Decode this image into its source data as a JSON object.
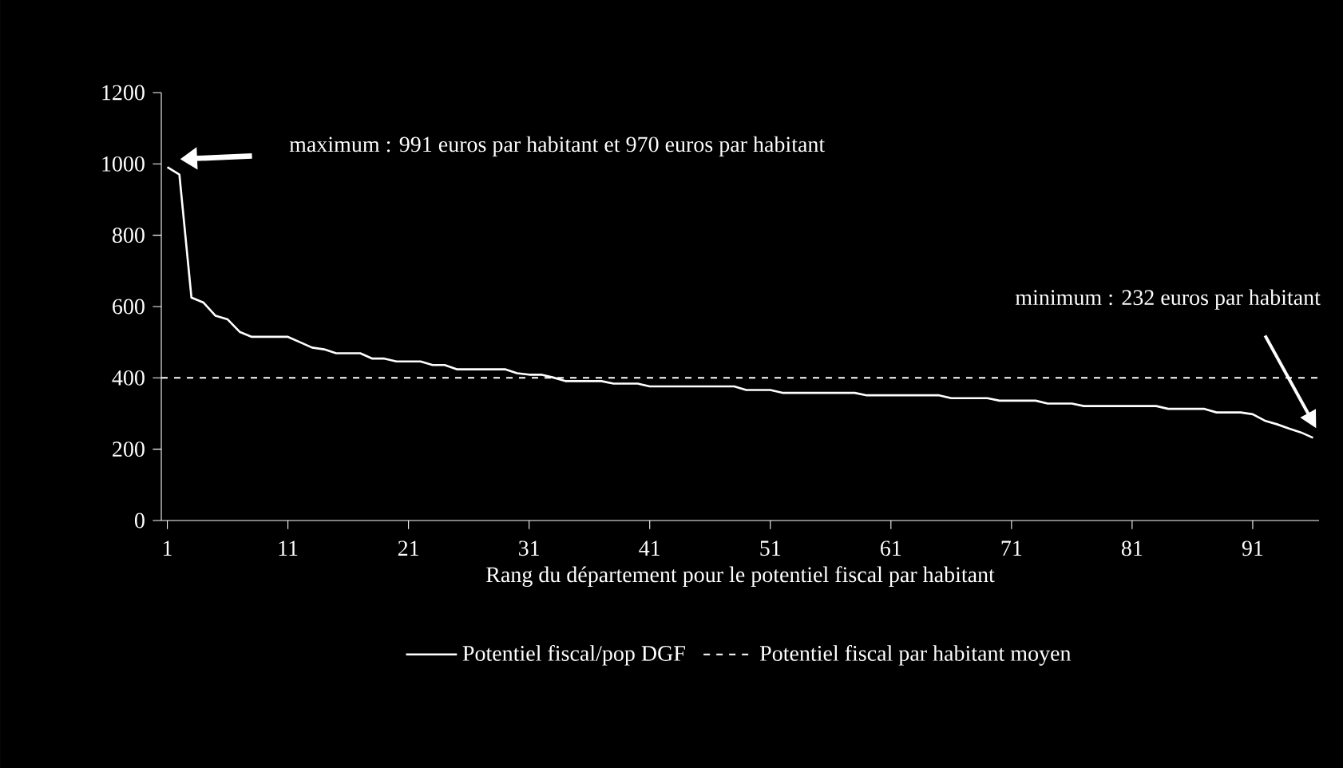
{
  "chart_data": {
    "type": "line",
    "xlabel": "Rang du département pour le potentiel fiscal par habitant",
    "x": [
      1,
      2,
      3,
      4,
      5,
      6,
      7,
      8,
      9,
      10,
      11,
      12,
      13,
      14,
      15,
      16,
      17,
      18,
      19,
      20,
      21,
      22,
      23,
      24,
      25,
      26,
      27,
      28,
      29,
      30,
      31,
      32,
      33,
      34,
      35,
      36,
      37,
      38,
      39,
      40,
      41,
      42,
      43,
      44,
      45,
      46,
      47,
      48,
      49,
      50,
      51,
      52,
      53,
      54,
      55,
      56,
      57,
      58,
      59,
      60,
      61,
      62,
      63,
      64,
      65,
      66,
      67,
      68,
      69,
      70,
      71,
      72,
      73,
      74,
      75,
      76,
      77,
      78,
      79,
      80,
      81,
      82,
      83,
      84,
      85,
      86,
      87,
      88,
      89,
      90,
      91,
      92,
      93,
      94,
      95,
      96
    ],
    "series": [
      {
        "name": "Potentiel fiscal/pop DGF",
        "color": "#ffffff",
        "values": [
          991,
          970,
          625,
          611,
          574,
          564,
          529,
          515,
          515,
          515,
          515,
          500,
          485,
          480,
          469,
          469,
          469,
          454,
          454,
          446,
          446,
          446,
          436,
          436,
          424,
          424,
          424,
          424,
          424,
          413,
          409,
          409,
          401,
          391,
          391,
          391,
          391,
          384,
          384,
          384,
          376,
          376,
          376,
          376,
          376,
          376,
          376,
          376,
          366,
          366,
          366,
          358,
          358,
          358,
          358,
          358,
          358,
          358,
          351,
          351,
          351,
          351,
          351,
          351,
          351,
          343,
          343,
          343,
          343,
          336,
          336,
          336,
          336,
          328,
          328,
          328,
          321,
          321,
          321,
          321,
          321,
          321,
          321,
          313,
          313,
          313,
          313,
          303,
          303,
          303,
          298,
          280,
          270,
          258,
          247,
          232
        ]
      }
    ],
    "xlim": [
      0.5,
      96.5
    ],
    "xticks": [
      1,
      11,
      21,
      31,
      41,
      51,
      61,
      71,
      81,
      91
    ],
    "ylim": [
      0,
      1200
    ],
    "yticks": [
      0,
      200,
      400,
      600,
      800,
      1000,
      1200
    ],
    "ref_lines": [
      {
        "axis": "y",
        "value": 400,
        "label": "Potentiel fiscal par habitant moyen",
        "color": "#ffffff",
        "line_style": "dashed"
      }
    ],
    "annotations": [
      "maximum : 991 euros par habitant et 970 euros par habitant",
      "minimum : 232 euros par habitant"
    ],
    "legend": "bottom",
    "marker": "none",
    "line_style": "solid",
    "grid": false
  }
}
